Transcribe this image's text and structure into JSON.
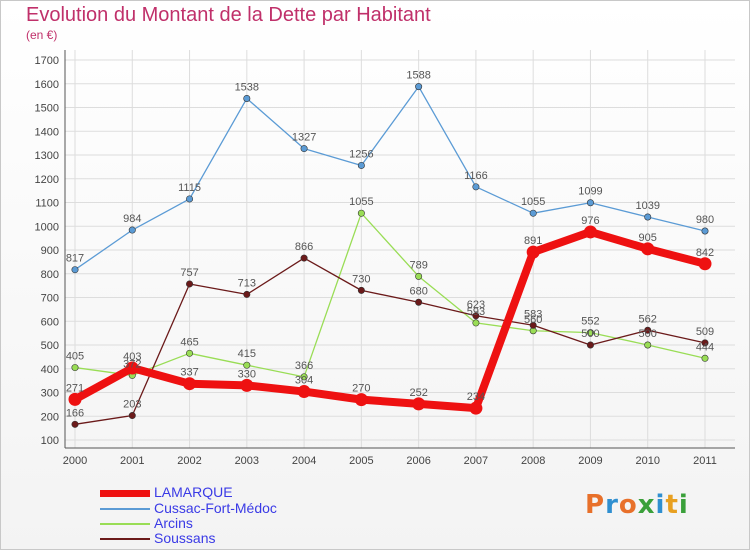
{
  "title": "Evolution du Montant de la Dette par Habitant",
  "unit": "(en €)",
  "logo": {
    "text": "Proxiti",
    "colors": [
      "#e8702a",
      "#2f8fd0",
      "#e8702a",
      "#3aa03a",
      "#2f8fd0",
      "#e8a020",
      "#3aa03a"
    ]
  },
  "chart_data": {
    "type": "line",
    "x": [
      "2000",
      "2001",
      "2002",
      "2003",
      "2004",
      "2005",
      "2006",
      "2007",
      "2008",
      "2009",
      "2010",
      "2011"
    ],
    "ylim": [
      100,
      1700
    ],
    "yticks": [
      100,
      200,
      300,
      400,
      500,
      600,
      700,
      800,
      900,
      1000,
      1100,
      1200,
      1300,
      1400,
      1500,
      1600,
      1700
    ],
    "grid": true,
    "legend_position": "bottom-left",
    "series": [
      {
        "name": "LAMARQUE",
        "color": "#ee1111",
        "values": [
          271,
          403,
          337,
          330,
          304,
          270,
          252,
          234,
          891,
          976,
          905,
          842
        ]
      },
      {
        "name": "Cussac-Fort-Médoc",
        "color": "#5b9bd5",
        "values": [
          817,
          984,
          1115,
          1538,
          1327,
          1256,
          1588,
          1166,
          1055,
          1099,
          1039,
          980
        ]
      },
      {
        "name": "Arcins",
        "color": "#99dd55",
        "values": [
          405,
          372,
          465,
          415,
          366,
          1055,
          789,
          593,
          560,
          552,
          500,
          444
        ]
      },
      {
        "name": "Soussans",
        "color": "#6b1a1a",
        "values": [
          166,
          203,
          757,
          713,
          866,
          730,
          680,
          623,
          583,
          500,
          562,
          509
        ]
      }
    ]
  }
}
